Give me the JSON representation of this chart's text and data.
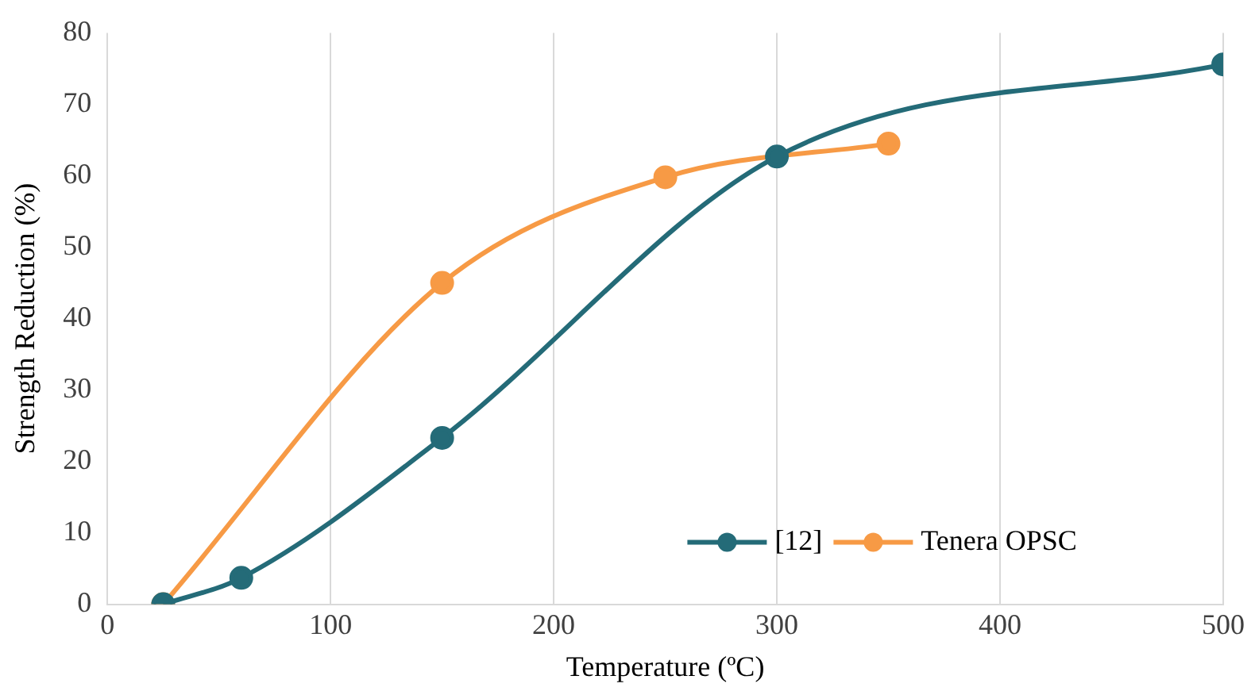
{
  "chart_data": {
    "type": "line",
    "xlabel": "Temperature (ºC)",
    "ylabel": "Strength Reduction (%)",
    "xlim": [
      0,
      500
    ],
    "xticks": [
      0,
      100,
      200,
      300,
      400,
      500
    ],
    "ylim": [
      0,
      80
    ],
    "yticks": [
      0,
      10,
      20,
      30,
      40,
      50,
      60,
      70,
      80
    ],
    "grid": "x",
    "legend": "bottom",
    "marker": "circle",
    "line_style": "solid",
    "series": [
      {
        "name": "[12]",
        "color": "#246b78",
        "x": [
          25,
          60,
          150,
          300,
          500
        ],
        "values": [
          0,
          3.7,
          23.3,
          62.7,
          75.6
        ]
      },
      {
        "name": "Tenera OPSC",
        "color": "#f79a45",
        "x": [
          25,
          150,
          250,
          350
        ],
        "values": [
          0,
          45,
          59.8,
          64.5
        ]
      }
    ]
  }
}
